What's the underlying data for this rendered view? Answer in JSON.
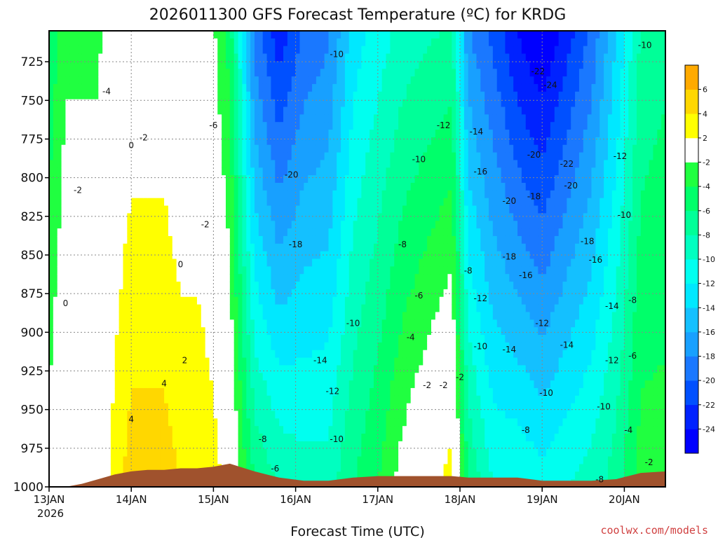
{
  "chart_data": {
    "type": "heatmap",
    "title": "2026011300 GFS Forecast Temperature (ºC) for KRDG",
    "xlabel": "Forecast Time (UTC)",
    "ylabel": "",
    "x_ticks": [
      "13JAN",
      "14JAN",
      "15JAN",
      "16JAN",
      "17JAN",
      "18JAN",
      "19JAN",
      "20JAN"
    ],
    "x_tick_sub": "2026",
    "x_range_days": [
      0,
      7.5
    ],
    "y_ticks": [
      725,
      750,
      775,
      800,
      825,
      850,
      875,
      900,
      925,
      950,
      975,
      1000
    ],
    "y_range_hpa": [
      1000,
      705
    ],
    "y_direction": "pressure decreasing upward",
    "grid": true,
    "colorbar": {
      "levels": [
        -26,
        -24,
        -22,
        -20,
        -18,
        -16,
        -14,
        -12,
        -10,
        -8,
        -6,
        -4,
        -2,
        2,
        4,
        6,
        8
      ],
      "labels": [
        "6",
        "4",
        "2",
        "-2",
        "-4",
        "-6",
        "-8",
        "-10",
        "-12",
        "-14",
        "-16",
        "-18",
        "-20",
        "-22",
        "-24"
      ],
      "colors": [
        "#0000ff",
        "#0022ff",
        "#0050ff",
        "#1a78ff",
        "#18a0ff",
        "#14c0ff",
        "#00e8ff",
        "#00fff0",
        "#00ffc0",
        "#00ff98",
        "#00ff6a",
        "#20ff40",
        "#ffffff",
        "#ffff00",
        "#ffd700",
        "#ffaa00"
      ]
    },
    "ground_color": "#a0522d",
    "column_profiles": {
      "x_day": [
        0,
        0.2,
        0.4,
        0.6,
        0.8,
        1.0,
        1.2,
        1.4,
        1.6,
        1.8,
        2.0,
        2.2,
        2.5,
        2.8,
        3.1,
        3.4,
        3.7,
        4.0,
        4.3,
        4.6,
        4.9,
        5.1,
        5.4,
        5.7,
        6.0,
        6.3,
        6.6,
        6.9,
        7.2,
        7.5
      ],
      "surface_temp": [
        -1,
        1,
        0,
        0,
        3,
        5,
        5,
        5,
        4,
        4,
        3,
        1,
        -6,
        -8,
        -9,
        -9,
        -6,
        -4,
        -1,
        1,
        3,
        -6,
        -10,
        -10,
        -11,
        -10,
        -9,
        -7,
        -3,
        -3
      ],
      "lapse_per_25hpa": [
        -0.4,
        -0.3,
        -0.2,
        -0.2,
        -0.3,
        -0.4,
        -0.4,
        -0.4,
        -0.4,
        -0.4,
        -0.4,
        -0.5,
        -1.1,
        -1.3,
        -0.9,
        -0.8,
        -0.6,
        -0.6,
        -0.7,
        -0.8,
        -0.9,
        -1.0,
        -0.9,
        -1.2,
        -1.3,
        -1.1,
        -0.9,
        -0.6,
        -0.4,
        -0.3
      ],
      "ground_hpa": [
        1000,
        1000,
        998,
        995,
        992,
        990,
        989,
        989,
        988,
        988,
        987,
        985,
        990,
        994,
        996,
        996,
        994,
        993,
        993,
        993,
        993,
        994,
        994,
        994,
        996,
        996,
        996,
        995,
        991,
        990
      ]
    },
    "contour_labels": [
      {
        "text": "-4",
        "day": 0.7,
        "hpa": 746
      },
      {
        "text": "-6",
        "day": 2.0,
        "hpa": 768
      },
      {
        "text": "-2",
        "day": 0.35,
        "hpa": 810
      },
      {
        "text": "0",
        "day": 1.0,
        "hpa": 781
      },
      {
        "text": "-2",
        "day": 1.15,
        "hpa": 776
      },
      {
        "text": "-2",
        "day": 1.9,
        "hpa": 832
      },
      {
        "text": "0",
        "day": 0.2,
        "hpa": 883
      },
      {
        "text": "0",
        "day": 1.6,
        "hpa": 858
      },
      {
        "text": "2",
        "day": 1.65,
        "hpa": 920
      },
      {
        "text": "4",
        "day": 1.4,
        "hpa": 935
      },
      {
        "text": "4",
        "day": 1.0,
        "hpa": 958
      },
      {
        "text": "-20",
        "day": 2.95,
        "hpa": 800
      },
      {
        "text": "-18",
        "day": 3.0,
        "hpa": 845
      },
      {
        "text": "-10",
        "day": 3.7,
        "hpa": 896
      },
      {
        "text": "-10",
        "day": 3.5,
        "hpa": 722
      },
      {
        "text": "-14",
        "day": 3.3,
        "hpa": 920
      },
      {
        "text": "-12",
        "day": 3.45,
        "hpa": 940
      },
      {
        "text": "-8",
        "day": 2.6,
        "hpa": 971
      },
      {
        "text": "-6",
        "day": 2.75,
        "hpa": 990
      },
      {
        "text": "-10",
        "day": 3.5,
        "hpa": 971
      },
      {
        "text": "-12",
        "day": 4.8,
        "hpa": 768
      },
      {
        "text": "-10",
        "day": 4.5,
        "hpa": 790
      },
      {
        "text": "-8",
        "day": 4.3,
        "hpa": 845
      },
      {
        "text": "-6",
        "day": 4.5,
        "hpa": 878
      },
      {
        "text": "-4",
        "day": 4.4,
        "hpa": 905
      },
      {
        "text": "-2",
        "day": 4.6,
        "hpa": 936
      },
      {
        "text": "-2",
        "day": 4.8,
        "hpa": 936
      },
      {
        "text": "-14",
        "day": 5.2,
        "hpa": 772
      },
      {
        "text": "-16",
        "day": 5.25,
        "hpa": 798
      },
      {
        "text": "-8",
        "day": 5.1,
        "hpa": 862
      },
      {
        "text": "-12",
        "day": 5.25,
        "hpa": 880
      },
      {
        "text": "-10",
        "day": 5.25,
        "hpa": 911
      },
      {
        "text": "-22",
        "day": 5.95,
        "hpa": 733
      },
      {
        "text": "-24",
        "day": 6.1,
        "hpa": 742
      },
      {
        "text": "-20",
        "day": 5.9,
        "hpa": 787
      },
      {
        "text": "-20",
        "day": 5.6,
        "hpa": 817
      },
      {
        "text": "-18",
        "day": 5.9,
        "hpa": 814
      },
      {
        "text": "-18",
        "day": 5.6,
        "hpa": 853
      },
      {
        "text": "-16",
        "day": 5.8,
        "hpa": 865
      },
      {
        "text": "-14",
        "day": 5.6,
        "hpa": 913
      },
      {
        "text": "-12",
        "day": 6.0,
        "hpa": 896
      },
      {
        "text": "-14",
        "day": 6.3,
        "hpa": 910
      },
      {
        "text": "-10",
        "day": 6.05,
        "hpa": 941
      },
      {
        "text": "-8",
        "day": 5.8,
        "hpa": 965
      },
      {
        "text": "-20",
        "day": 6.35,
        "hpa": 807
      },
      {
        "text": "-22",
        "day": 6.3,
        "hpa": 793
      },
      {
        "text": "-18",
        "day": 6.55,
        "hpa": 843
      },
      {
        "text": "-16",
        "day": 6.65,
        "hpa": 855
      },
      {
        "text": "-14",
        "day": 6.85,
        "hpa": 885
      },
      {
        "text": "-12",
        "day": 6.95,
        "hpa": 788
      },
      {
        "text": "-10",
        "day": 7.25,
        "hpa": 716
      },
      {
        "text": "-10",
        "day": 7.0,
        "hpa": 826
      },
      {
        "text": "-8",
        "day": 7.1,
        "hpa": 881
      },
      {
        "text": "-6",
        "day": 7.1,
        "hpa": 917
      },
      {
        "text": "-12",
        "day": 6.85,
        "hpa": 920
      },
      {
        "text": "-10",
        "day": 6.75,
        "hpa": 950
      },
      {
        "text": "-4",
        "day": 7.05,
        "hpa": 965
      },
      {
        "text": "-2",
        "day": 7.3,
        "hpa": 986
      },
      {
        "text": "-8",
        "day": 6.7,
        "hpa": 997
      },
      {
        "text": "-2",
        "day": 5.0,
        "hpa": 931
      }
    ]
  },
  "credit": "coolwx.com/models"
}
